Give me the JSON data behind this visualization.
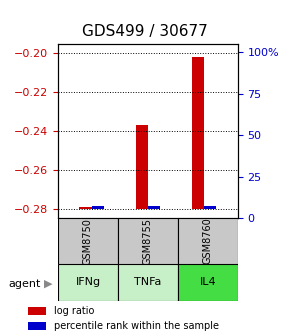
{
  "title": "GDS499 / 30677",
  "samples": [
    "GSM8750",
    "GSM8755",
    "GSM8760"
  ],
  "agents": [
    "IFNg",
    "TNFa",
    "IL4"
  ],
  "log_ratios": [
    -0.279,
    -0.237,
    -0.202
  ],
  "percentile_ranks": [
    2,
    2,
    2
  ],
  "log_ratio_base": -0.28,
  "ylim_left": [
    -0.285,
    -0.195
  ],
  "yticks_left": [
    -0.28,
    -0.26,
    -0.24,
    -0.22,
    -0.2
  ],
  "yticks_right": [
    0,
    25,
    50,
    75,
    100
  ],
  "ylim_right": [
    0,
    105
  ],
  "bar_color_red": "#cc0000",
  "bar_color_blue": "#0000cc",
  "gsm_box_color": "#c8c8c8",
  "agent_box_colors": [
    "#c8f0c8",
    "#c8f0c8",
    "#44dd44"
  ],
  "left_tick_color": "#cc0000",
  "right_tick_color": "#0000cc",
  "title_fontsize": 11,
  "tick_fontsize": 8
}
